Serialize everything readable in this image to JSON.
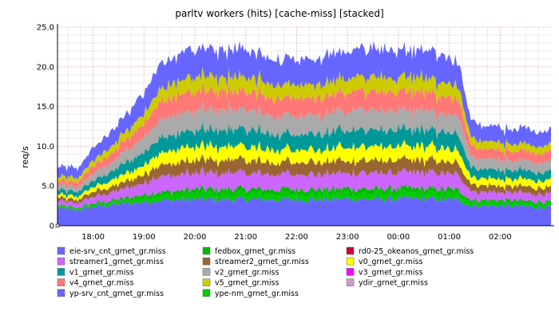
{
  "chart_data": {
    "type": "area",
    "stacked": true,
    "title": "parltv workers (hits) [cache-miss] [stacked]",
    "ylabel": "req/s",
    "xlabel": "",
    "ylim": [
      0,
      25
    ],
    "yticks": [
      0,
      5,
      10,
      15,
      20,
      25
    ],
    "ytick_labels": [
      "0",
      "5.0",
      "10.0",
      "15.0",
      "20.0",
      "25.0"
    ],
    "x_range_hours": [
      17.3,
      3.0
    ],
    "xticks": [
      {
        "t": "18:00",
        "label": "18:00"
      },
      {
        "t": "19:00",
        "label": "19:00"
      },
      {
        "t": "20:00",
        "label": "20:00"
      },
      {
        "t": "21:00",
        "label": "21:00"
      },
      {
        "t": "22:00",
        "label": "22:00"
      },
      {
        "t": "23:00",
        "label": "23:00"
      },
      {
        "t": "00:00",
        "label": "00:00"
      },
      {
        "t": "01:00",
        "label": "01:00"
      },
      {
        "t": "02:00",
        "label": "02:00"
      }
    ],
    "grid": true,
    "legend_position": "bottom",
    "x": [
      "17:20",
      "17:40",
      "18:00",
      "18:30",
      "19:00",
      "19:15",
      "19:30",
      "20:00",
      "20:30",
      "21:00",
      "21:30",
      "22:00",
      "22:30",
      "23:00",
      "23:30",
      "00:00",
      "00:30",
      "01:00",
      "01:15",
      "01:20",
      "01:30",
      "02:00",
      "02:30",
      "03:00"
    ],
    "series": [
      {
        "name": "yp-srv_cnt_grnet_gr.miss",
        "color": "#6666ff",
        "values": [
          2.2,
          1.9,
          2.4,
          2.7,
          3.0,
          3.2,
          3.2,
          3.3,
          3.3,
          3.3,
          3.3,
          3.3,
          3.3,
          3.4,
          3.3,
          3.4,
          3.4,
          3.3,
          3.2,
          2.7,
          2.5,
          2.5,
          2.4,
          2.3
        ]
      },
      {
        "name": "ype-nm_grnet_gr.miss",
        "color": "#00cc00",
        "values": [
          0.2,
          0.2,
          0.2,
          0.3,
          0.5,
          0.6,
          0.6,
          0.7,
          0.7,
          0.7,
          0.7,
          0.7,
          0.7,
          0.7,
          0.7,
          0.7,
          0.7,
          0.7,
          0.6,
          0.5,
          0.4,
          0.4,
          0.4,
          0.4
        ]
      },
      {
        "name": "fedbox_grnet_gr.miss",
        "color": "#00bb00",
        "values": [
          0.1,
          0.1,
          0.2,
          0.3,
          0.4,
          0.5,
          0.5,
          0.6,
          0.6,
          0.6,
          0.6,
          0.6,
          0.6,
          0.6,
          0.6,
          0.6,
          0.6,
          0.6,
          0.5,
          0.4,
          0.3,
          0.3,
          0.3,
          0.3
        ]
      },
      {
        "name": "streamer1_grnet_gr.miss",
        "color": "#cc66ff",
        "values": [
          0.6,
          0.6,
          0.8,
          1.1,
          1.5,
          1.9,
          2.0,
          2.1,
          2.0,
          2.0,
          1.9,
          1.9,
          1.9,
          2.0,
          2.0,
          2.0,
          2.0,
          1.9,
          1.8,
          1.3,
          1.1,
          1.0,
          1.0,
          1.0
        ]
      },
      {
        "name": "streamer2_grnet_gr.miss",
        "color": "#996633",
        "values": [
          0.4,
          0.4,
          0.6,
          0.8,
          1.1,
          1.4,
          1.5,
          1.6,
          1.6,
          1.6,
          1.5,
          1.5,
          1.5,
          1.6,
          1.6,
          1.6,
          1.6,
          1.5,
          1.4,
          1.0,
          0.9,
          0.8,
          0.8,
          0.8
        ]
      },
      {
        "name": "v0_grnet_gr.miss",
        "color": "#ffff00",
        "values": [
          0.4,
          0.4,
          0.6,
          0.9,
          1.2,
          1.5,
          1.6,
          1.7,
          1.7,
          1.7,
          1.6,
          1.6,
          1.6,
          1.7,
          1.7,
          1.7,
          1.7,
          1.6,
          1.5,
          1.1,
          0.9,
          0.9,
          0.9,
          0.9
        ]
      },
      {
        "name": "v1_grnet_gr.miss",
        "color": "#009999",
        "values": [
          0.6,
          0.6,
          0.8,
          1.2,
          1.6,
          1.9,
          2.0,
          2.1,
          2.1,
          2.1,
          2.0,
          2.0,
          2.0,
          2.1,
          2.1,
          2.1,
          2.1,
          2.0,
          1.9,
          1.4,
          1.2,
          1.1,
          1.1,
          1.1
        ]
      },
      {
        "name": "v2_grnet_gr.miss",
        "color": "#aaaaaa",
        "values": [
          0.6,
          0.6,
          0.9,
          1.3,
          1.8,
          2.2,
          2.4,
          2.5,
          2.5,
          2.4,
          2.3,
          2.3,
          2.3,
          2.4,
          2.4,
          2.4,
          2.4,
          2.3,
          2.2,
          1.6,
          1.3,
          1.3,
          1.2,
          1.2
        ]
      },
      {
        "name": "v3_grnet_gr.miss",
        "color": "#ff00ff",
        "values": [
          0.0,
          0.0,
          0.0,
          0.0,
          0.0,
          0.0,
          0.0,
          0.0,
          0.0,
          0.0,
          0.0,
          0.0,
          0.0,
          0.0,
          0.0,
          0.0,
          0.0,
          0.0,
          0.0,
          0.0,
          0.0,
          0.0,
          0.0,
          0.0
        ]
      },
      {
        "name": "v4_grnet_gr.miss",
        "color": "#ff7777",
        "values": [
          0.5,
          0.6,
          0.9,
          1.2,
          1.7,
          2.1,
          2.3,
          2.4,
          2.4,
          2.3,
          2.2,
          2.2,
          2.2,
          2.3,
          2.3,
          2.3,
          2.3,
          2.2,
          2.1,
          1.6,
          1.3,
          1.2,
          1.2,
          1.2
        ]
      },
      {
        "name": "v5_grnet_gr.miss",
        "color": "#cccc00",
        "values": [
          0.5,
          0.5,
          0.7,
          1.0,
          1.3,
          1.6,
          1.7,
          1.8,
          1.8,
          1.8,
          1.7,
          1.7,
          1.7,
          1.8,
          1.8,
          1.8,
          1.8,
          1.7,
          1.6,
          1.2,
          1.0,
          1.0,
          0.9,
          0.9
        ]
      },
      {
        "name": "ydir_grnet_gr.miss",
        "color": "#cc99cc",
        "values": [
          0.0,
          0.0,
          0.0,
          0.0,
          0.0,
          0.0,
          0.0,
          0.0,
          0.0,
          0.0,
          0.0,
          0.0,
          0.0,
          0.0,
          0.0,
          0.0,
          0.0,
          0.0,
          0.0,
          0.0,
          0.0,
          0.0,
          0.0,
          0.0
        ]
      },
      {
        "name": "rd0-25_okeanos_grnet_gr.miss",
        "color": "#cc0033",
        "values": [
          0.0,
          0.0,
          0.0,
          0.0,
          0.0,
          0.0,
          0.0,
          0.0,
          0.0,
          0.0,
          0.0,
          0.0,
          0.0,
          0.0,
          0.0,
          0.0,
          0.0,
          0.0,
          0.0,
          0.0,
          0.0,
          0.0,
          0.0,
          0.0
        ]
      },
      {
        "name": "eie-srv_cnt_grnet_gr.miss",
        "color": "#6666ff",
        "values": [
          1.2,
          1.2,
          1.6,
          2.0,
          2.6,
          3.1,
          3.3,
          3.4,
          3.5,
          3.4,
          3.2,
          3.2,
          3.3,
          3.4,
          3.5,
          3.5,
          3.4,
          3.2,
          3.0,
          2.5,
          2.0,
          1.9,
          1.9,
          1.8
        ]
      }
    ],
    "legend": [
      {
        "name": "eie-srv_cnt_grnet_gr.miss",
        "color": "#6666ff"
      },
      {
        "name": "fedbox_grnet_gr.miss",
        "color": "#00bb00"
      },
      {
        "name": "rd0-25_okeanos_grnet_gr.miss",
        "color": "#cc0033"
      },
      {
        "name": "streamer1_grnet_gr.miss",
        "color": "#cc66ff"
      },
      {
        "name": "streamer2_grnet_gr.miss",
        "color": "#996633"
      },
      {
        "name": "v0_grnet_gr.miss",
        "color": "#ffff00"
      },
      {
        "name": "v1_grnet_gr.miss",
        "color": "#009999"
      },
      {
        "name": "v2_grnet_gr.miss",
        "color": "#aaaaaa"
      },
      {
        "name": "v3_grnet_gr.miss",
        "color": "#ff00ff"
      },
      {
        "name": "v4_grnet_gr.miss",
        "color": "#ff7777"
      },
      {
        "name": "v5_grnet_gr.miss",
        "color": "#cccc00"
      },
      {
        "name": "ydir_grnet_gr.miss",
        "color": "#cc99cc"
      },
      {
        "name": "yp-srv_cnt_grnet_gr.miss",
        "color": "#6666ff"
      },
      {
        "name": "ype-nm_grnet_gr.miss",
        "color": "#00cc00"
      }
    ]
  }
}
